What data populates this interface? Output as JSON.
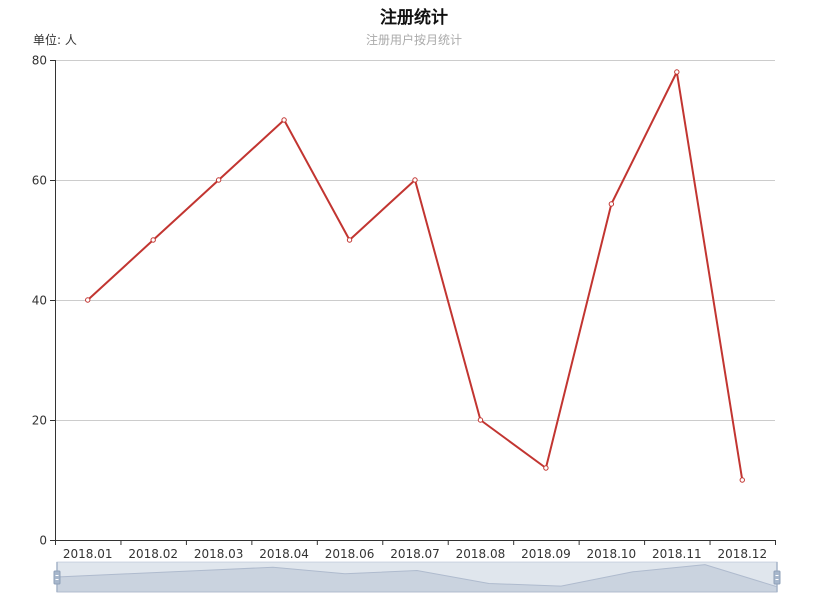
{
  "chart_data": {
    "type": "line",
    "title": "注册统计",
    "subtitle": "注册用户按月统计",
    "unit_label": "单位: 人",
    "categories": [
      "2018.01",
      "2018.02",
      "2018.03",
      "2018.04",
      "2018.06",
      "2018.07",
      "2018.08",
      "2018.09",
      "2018.10",
      "2018.11",
      "2018.12"
    ],
    "series": [
      {
        "values": [
          40,
          50,
          60,
          70,
          50,
          60,
          20,
          12,
          56,
          78,
          10
        ]
      }
    ],
    "ylim": [
      0,
      80
    ],
    "yticks": [
      0,
      20,
      40,
      60,
      80
    ],
    "grid": true,
    "legend": "none",
    "line_color": "#c23531",
    "grid_color": "#cccccc",
    "axis_color": "#333333",
    "datazoom": {
      "range": [
        0,
        100
      ]
    }
  }
}
